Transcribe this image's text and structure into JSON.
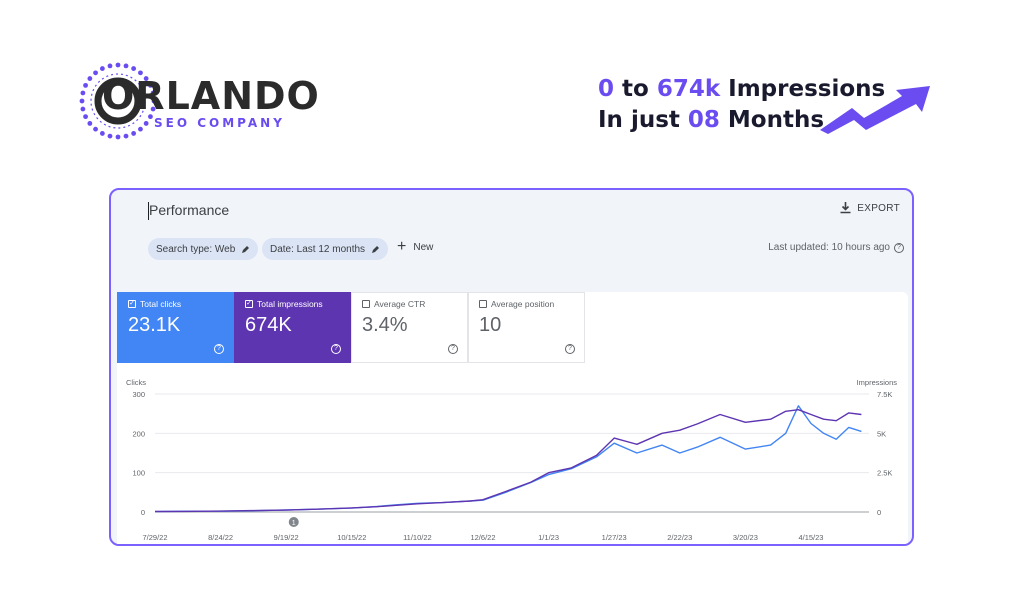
{
  "brand": {
    "name": "ORLANDO",
    "tagline": "SEO COMPANY"
  },
  "headline": {
    "line1_a": "0",
    "line1_b": " to ",
    "line1_c": "674k",
    "line1_d": " Impressions",
    "line2_a": "In just ",
    "line2_b": "08",
    "line2_c": " Months"
  },
  "colors": {
    "accent": "#6a4cf0",
    "clicks": "#4285f4",
    "impressions": "#5e35b1",
    "card_border": "#7b61ff"
  },
  "header": {
    "title": "Performance",
    "export_label": "EXPORT",
    "export_icon": "download-icon"
  },
  "filters": {
    "search_type": "Search type: Web",
    "date": "Date: Last 12 months",
    "new_label": "New",
    "last_updated": "Last updated: 10 hours ago"
  },
  "metrics": [
    {
      "label": "Total clicks",
      "value": "23.1K",
      "checked": true
    },
    {
      "label": "Total impressions",
      "value": "674K",
      "checked": true
    },
    {
      "label": "Average CTR",
      "value": "3.4%",
      "checked": false
    },
    {
      "label": "Average position",
      "value": "10",
      "checked": false
    }
  ],
  "chart_data": {
    "type": "line",
    "left_axis_label": "Clicks",
    "right_axis_label": "Impressions",
    "left_ticks": [
      "300",
      "200",
      "100",
      "0"
    ],
    "right_ticks": [
      "7.5K",
      "5K",
      "2.5K",
      "0"
    ],
    "x_ticks": [
      "7/29/22",
      "8/24/22",
      "9/19/22",
      "10/15/22",
      "11/10/22",
      "12/6/22",
      "1/1/23",
      "1/27/23",
      "2/22/23",
      "3/20/23",
      "4/15/23"
    ],
    "annotation": "1",
    "annotation_date": "9/22/22",
    "left_ylim": [
      0,
      300
    ],
    "right_ylim": [
      0,
      7500
    ],
    "grid": true,
    "series": [
      {
        "name": "Clicks",
        "axis": "left",
        "color": "#4285f4",
        "points": [
          [
            "7/29/22",
            1
          ],
          [
            "8/10/22",
            2
          ],
          [
            "8/24/22",
            2
          ],
          [
            "9/5/22",
            3
          ],
          [
            "9/19/22",
            5
          ],
          [
            "10/1/22",
            7
          ],
          [
            "10/15/22",
            10
          ],
          [
            "10/25/22",
            14
          ],
          [
            "11/1/22",
            18
          ],
          [
            "11/10/22",
            22
          ],
          [
            "11/20/22",
            24
          ],
          [
            "12/1/22",
            28
          ],
          [
            "12/6/22",
            30
          ],
          [
            "12/15/22",
            50
          ],
          [
            "12/25/22",
            75
          ],
          [
            "1/1/23",
            95
          ],
          [
            "1/10/23",
            110
          ],
          [
            "1/20/23",
            140
          ],
          [
            "1/27/23",
            175
          ],
          [
            "2/5/23",
            150
          ],
          [
            "2/15/23",
            170
          ],
          [
            "2/22/23",
            150
          ],
          [
            "3/1/23",
            165
          ],
          [
            "3/10/23",
            190
          ],
          [
            "3/20/23",
            160
          ],
          [
            "3/30/23",
            170
          ],
          [
            "4/5/23",
            200
          ],
          [
            "4/10/23",
            270
          ],
          [
            "4/15/23",
            225
          ],
          [
            "4/20/23",
            200
          ],
          [
            "4/25/23",
            185
          ],
          [
            "4/30/23",
            215
          ],
          [
            "5/5/23",
            205
          ]
        ]
      },
      {
        "name": "Impressions",
        "axis": "right",
        "color": "#5e35b1",
        "points": [
          [
            "7/29/22",
            30
          ],
          [
            "8/10/22",
            40
          ],
          [
            "8/24/22",
            60
          ],
          [
            "9/5/22",
            90
          ],
          [
            "9/19/22",
            120
          ],
          [
            "10/1/22",
            180
          ],
          [
            "10/15/22",
            260
          ],
          [
            "10/25/22",
            340
          ],
          [
            "11/1/22",
            420
          ],
          [
            "11/10/22",
            520
          ],
          [
            "11/20/22",
            600
          ],
          [
            "12/1/22",
            700
          ],
          [
            "12/6/22",
            780
          ],
          [
            "12/15/22",
            1300
          ],
          [
            "12/25/22",
            1900
          ],
          [
            "1/1/23",
            2500
          ],
          [
            "1/10/23",
            2800
          ],
          [
            "1/20/23",
            3600
          ],
          [
            "1/27/23",
            4700
          ],
          [
            "2/5/23",
            4300
          ],
          [
            "2/15/23",
            5000
          ],
          [
            "2/22/23",
            5200
          ],
          [
            "3/1/23",
            5600
          ],
          [
            "3/10/23",
            6200
          ],
          [
            "3/20/23",
            5700
          ],
          [
            "3/30/23",
            5900
          ],
          [
            "4/5/23",
            6400
          ],
          [
            "4/10/23",
            6500
          ],
          [
            "4/15/23",
            6200
          ],
          [
            "4/20/23",
            5900
          ],
          [
            "4/25/23",
            5800
          ],
          [
            "4/30/23",
            6300
          ],
          [
            "5/5/23",
            6200
          ]
        ]
      }
    ]
  }
}
